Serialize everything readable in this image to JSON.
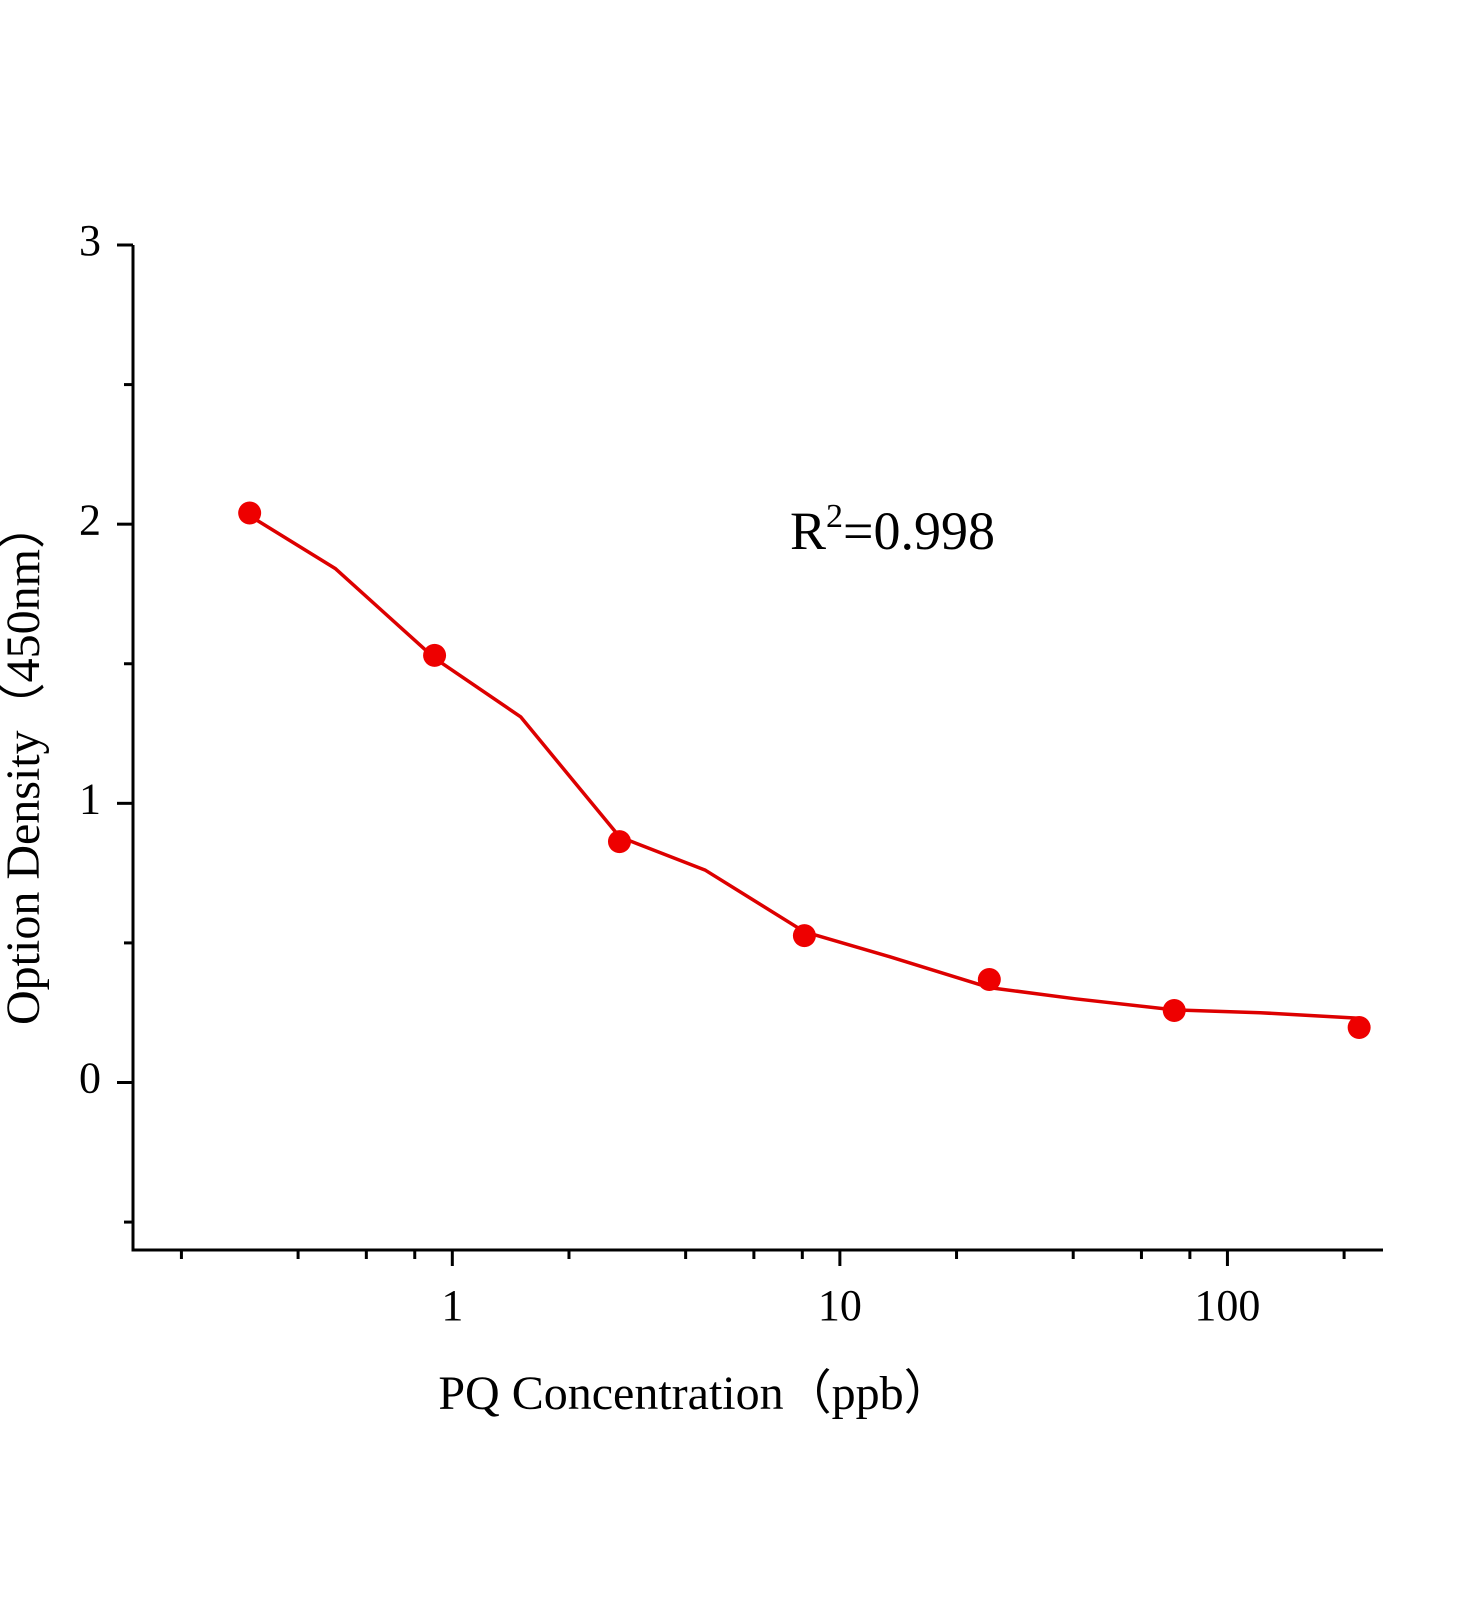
{
  "chart_data": {
    "type": "scatter",
    "xlabel": "PQ  Concentration（ppb）",
    "ylabel": "Option Density（450nm）",
    "annotation": {
      "base": "R",
      "superscript": "2",
      "text": "=0.998"
    },
    "xscale": "log",
    "xlim": [
      0.15,
      252
    ],
    "xticks": [
      1,
      10,
      100
    ],
    "xminor": [
      0.2,
      0.4,
      0.6,
      0.8,
      2,
      4,
      6,
      8,
      20,
      40,
      60,
      80,
      200
    ],
    "ylim": [
      -0.6,
      3
    ],
    "yticks": [
      0,
      1,
      2,
      3
    ],
    "yminor": [
      -0.5,
      0.5,
      1.5,
      2.5
    ],
    "points": {
      "color": "#ee0000",
      "x": [
        0.3,
        0.9,
        2.7,
        8.1,
        24.3,
        72.9,
        218.7
      ],
      "y": [
        2.04,
        1.53,
        0.863,
        0.526,
        0.369,
        0.258,
        0.197
      ]
    },
    "fit": {
      "color": "#dd0000",
      "x": [
        0.3,
        0.5,
        0.9,
        1.5,
        2.7,
        4.5,
        8.1,
        13.5,
        24.3,
        40.5,
        72.9,
        121.5,
        218.7
      ],
      "y": [
        2.03,
        1.84,
        1.52,
        1.31,
        0.88,
        0.76,
        0.54,
        0.45,
        0.34,
        0.3,
        0.26,
        0.25,
        0.23
      ]
    }
  }
}
